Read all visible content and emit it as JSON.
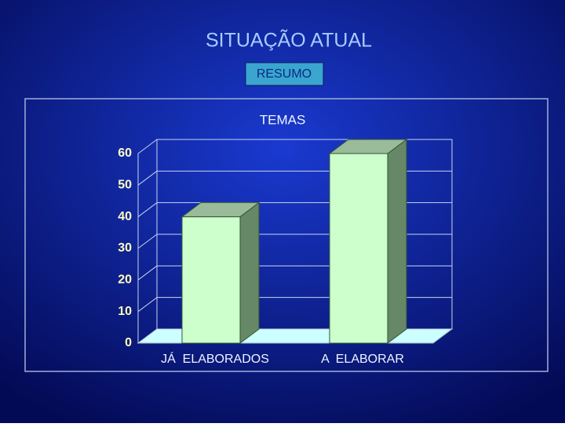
{
  "title": "SITUAÇÃO ATUAL",
  "subtitle": "RESUMO",
  "chart_data": {
    "type": "bar3d",
    "title": "TEMAS",
    "categories": [
      "JÁ  ELABORADOS",
      "A  ELABORAR"
    ],
    "values": [
      40,
      60
    ],
    "color": "#ccffcc",
    "ylim": [
      0,
      60
    ],
    "yticks": [
      0,
      10,
      20,
      30,
      40,
      50,
      60
    ],
    "grid": true
  }
}
